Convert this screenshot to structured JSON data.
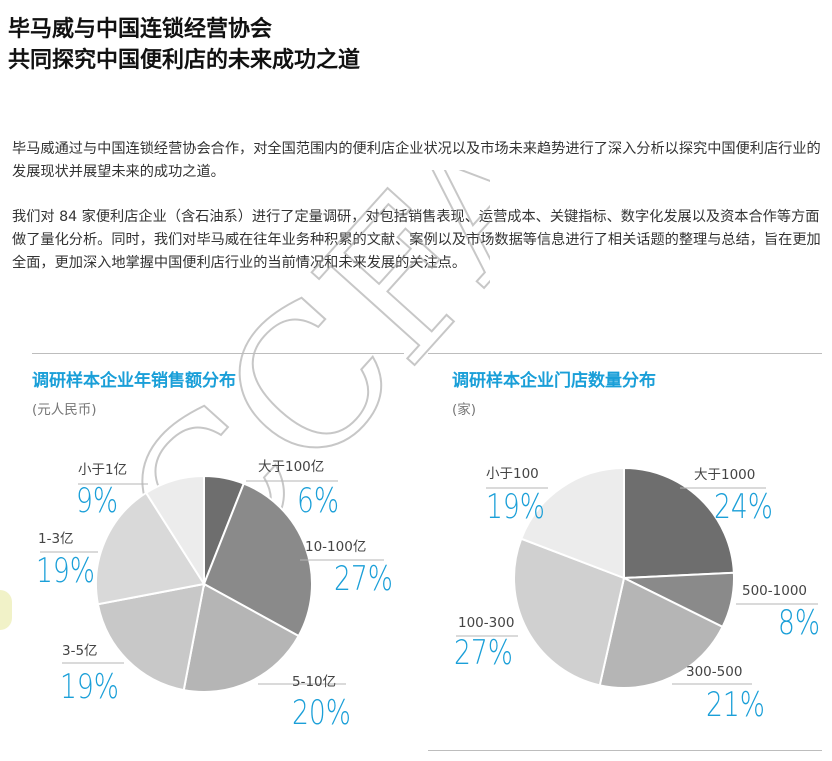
{
  "header": {
    "title_line1": "毕马威与中国连锁经营协会",
    "title_line2": "共同探究中国便利店的未来成功之道"
  },
  "body": {
    "paragraph1": "毕马威通过与中国连锁经营协会合作，对全国范围内的便利店企业状况以及市场未来趋势进行了深入分析以探究中国便利店行业的发展现状并展望未来的成功之道。",
    "paragraph2": "我们对 84 家便利店企业（含石油系）进行了定量调研，对包括销售表现、运营成本、关键指标、数字化发展以及资本合作等方面做了量化分析。同时，我们对毕马威在往年业务种积累的文献、案例以及市场数据等信息进行了相关话题的整理与总结，旨在更加全面，更加深入地掌握中国便利店行业的当前情况和未来发展的关注点。"
  },
  "watermark": "CCFA",
  "colors": {
    "accent": "#1a9fd8",
    "slices_left": [
      "#6e6e6e",
      "#8a8a8a",
      "#b5b5b5",
      "#c8c8c8",
      "#d9d9d9",
      "#ececec"
    ],
    "slices_right": [
      "#6e6e6e",
      "#8a8a8a",
      "#b5b5b5",
      "#d0d0d0",
      "#ececec"
    ]
  },
  "chart_data": [
    {
      "type": "pie",
      "title": "调研样本企业年销售额分布",
      "unit": "(元人民币)",
      "categories": [
        "大于100亿",
        "10-100亿",
        "5-10亿",
        "3-5亿",
        "1-3亿",
        "小于1亿"
      ],
      "values": [
        6,
        27,
        20,
        19,
        19,
        9
      ],
      "value_labels": [
        "6%",
        "27%",
        "20%",
        "19%",
        "19%",
        "9%"
      ]
    },
    {
      "type": "pie",
      "title": "调研样本企业门店数量分布",
      "unit": "(家)",
      "categories": [
        "大于1000",
        "500-1000",
        "300-500",
        "100-300",
        "小于100"
      ],
      "values": [
        24,
        8,
        21,
        27,
        19
      ],
      "value_labels": [
        "24%",
        "8%",
        "21%",
        "27%",
        "19%"
      ]
    }
  ]
}
